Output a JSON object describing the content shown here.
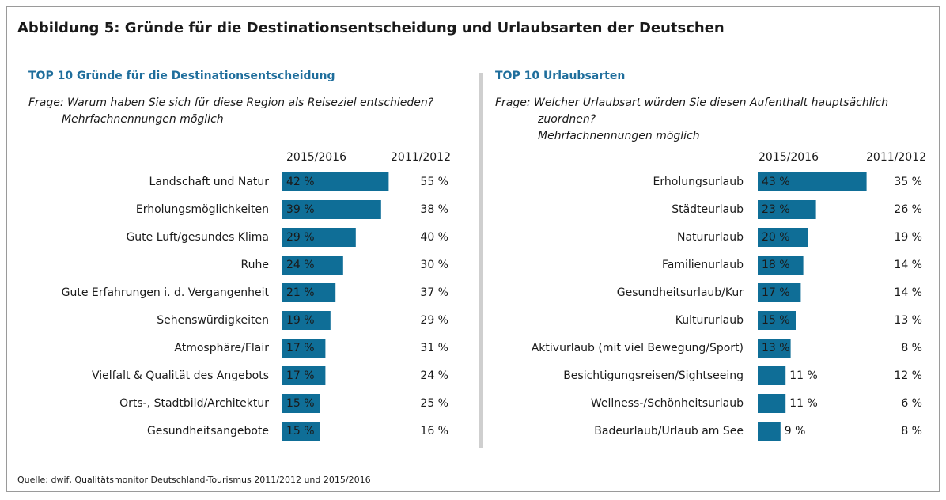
{
  "title": "Abbildung 5: Gründe für die Destinationsentscheidung und Urlaubsarten der Deutschen",
  "source": "Quelle: dwif, Qualitätsmonitor Deutschland-Tourismus 2011/2012 und 2015/2016",
  "chart_data": [
    {
      "type": "bar",
      "orientation": "horizontal",
      "title": "TOP 10 Gründe für die Destinationsentscheidung",
      "question_lines": [
        "Frage: Warum haben Sie sich für diese Region als Reiseziel entschieden?",
        "Mehrfachnennungen möglich"
      ],
      "categories": [
        "Landschaft und Natur",
        "Erholungsmöglichkeiten",
        "Gute Luft/gesundes Klima",
        "Ruhe",
        "Gute Erfahrungen i. d. Vergangenheit",
        "Sehenswürdigkeiten",
        "Atmosphäre/Flair",
        "Vielfalt & Qualität des Angebots",
        "Orts-, Stadtbild/Architektur",
        "Gesundheitsangebote"
      ],
      "series": [
        {
          "name": "2015/2016",
          "color": "#0f6e97",
          "values": [
            42,
            39,
            29,
            24,
            21,
            19,
            17,
            17,
            15,
            15
          ],
          "value_labels": [
            "42 %",
            "39 %",
            "29 %",
            "24 %",
            "21 %",
            "19 %",
            "17 %",
            "17 %",
            "15 %",
            "15 %"
          ]
        },
        {
          "name": "2011/2012",
          "values": [
            55,
            38,
            40,
            30,
            37,
            29,
            31,
            24,
            25,
            16
          ],
          "value_labels": [
            "55 %",
            "38 %",
            "40 %",
            "30 %",
            "37 %",
            "29 %",
            "31 %",
            "24 %",
            "25 %",
            "16 %"
          ]
        }
      ]
    },
    {
      "type": "bar",
      "orientation": "horizontal",
      "title": "TOP 10 Urlaubsarten",
      "question_lines": [
        "Frage: Welcher Urlaubsart würden Sie diesen Aufenthalt hauptsächlich",
        "zuordnen?",
        "Mehrfachnennungen möglich"
      ],
      "categories": [
        "Erholungsurlaub",
        "Städteurlaub",
        "Natururlaub",
        "Familienurlaub",
        "Gesundheitsurlaub/Kur",
        "Kultururlaub",
        "Aktivurlaub (mit viel Bewegung/Sport)",
        "Besichtigungsreisen/Sightseeing",
        "Wellness-/Schönheitsurlaub",
        "Badeurlaub/Urlaub am See"
      ],
      "series": [
        {
          "name": "2015/2016",
          "color": "#0f6e97",
          "values": [
            43,
            23,
            20,
            18,
            17,
            15,
            13,
            11,
            11,
            9
          ],
          "value_labels": [
            "43 %",
            "23 %",
            "20 %",
            "18 %",
            "17 %",
            "15 %",
            "13 %",
            "11 %",
            "11 %",
            "9 %"
          ]
        },
        {
          "name": "2011/2012",
          "values": [
            35,
            26,
            19,
            14,
            14,
            13,
            8,
            12,
            6,
            8
          ],
          "value_labels": [
            "35 %",
            "26 %",
            "19 %",
            "14 %",
            "14 %",
            "13 %",
            "8 %",
            "12 %",
            "6 %",
            "8 %"
          ]
        }
      ]
    }
  ]
}
